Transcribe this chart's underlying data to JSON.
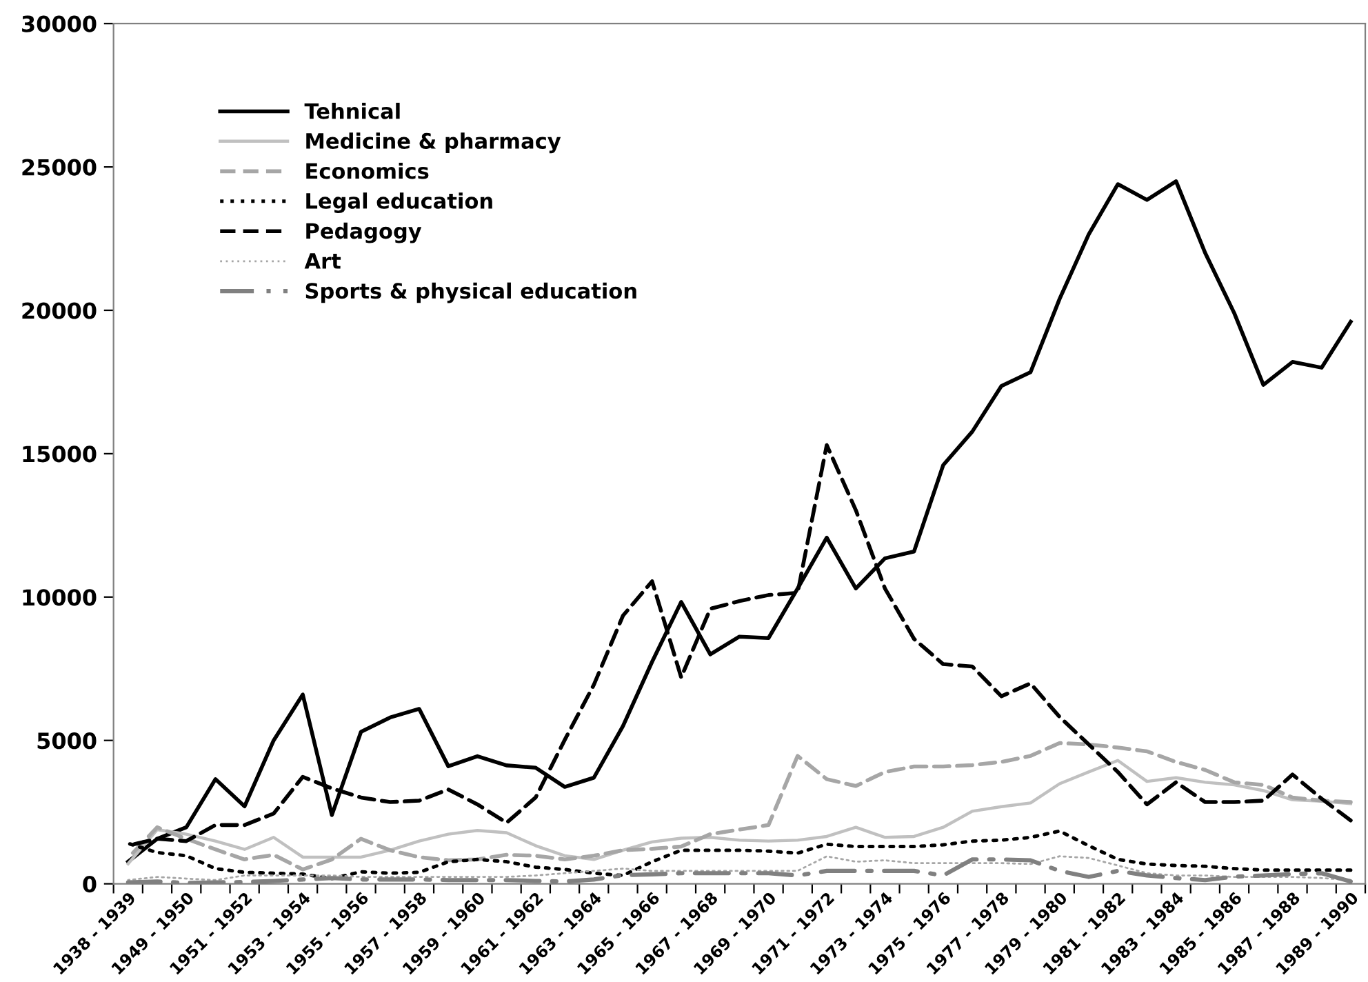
{
  "chart_data": {
    "type": "line",
    "categories": [
      "1938 - 1939",
      null,
      "1949 - 1950",
      null,
      "1951 - 1952",
      null,
      "1953 - 1954",
      null,
      "1955 - 1956",
      null,
      "1957 - 1958",
      null,
      "1959 - 1960",
      null,
      "1961 - 1962",
      null,
      "1963 - 1964",
      null,
      "1965 - 1966",
      null,
      "1967 - 1968",
      null,
      "1969 - 1970",
      null,
      "1971 - 1972",
      null,
      "1973 - 1974",
      null,
      "1975 - 1976",
      null,
      "1977 - 1978",
      null,
      "1979 - 1980",
      null,
      "1981 - 1982",
      null,
      "1983 - 1984",
      null,
      "1985 - 1986",
      null,
      "1987 - 1988",
      null,
      "1989 - 1990"
    ],
    "series": [
      {
        "name": "Tehnical",
        "color": "#000000",
        "line_style": "solid",
        "values": [
          770,
          1570,
          1970,
          3650,
          2700,
          5000,
          6600,
          2400,
          5300,
          5800,
          6100,
          4100,
          4450,
          4130,
          4050,
          3380,
          3700,
          5500,
          7740,
          9830,
          8000,
          8620,
          8570,
          10300,
          12070,
          10300,
          11350,
          11590,
          14600,
          15770,
          17360,
          17840,
          20400,
          22650,
          24400,
          23850,
          24500,
          22000,
          19900,
          17400,
          18200,
          18000,
          19600
        ]
      },
      {
        "name": "Medicine & pharmacy",
        "color": "#c0c0c0",
        "line_style": "solid",
        "values": [
          700,
          1890,
          1730,
          1490,
          1200,
          1620,
          930,
          930,
          930,
          1170,
          1490,
          1730,
          1860,
          1780,
          1330,
          980,
          850,
          1170,
          1460,
          1590,
          1620,
          1520,
          1490,
          1520,
          1650,
          1970,
          1620,
          1650,
          1970,
          2530,
          2690,
          2820,
          3490,
          3900,
          4300,
          3570,
          3700,
          3540,
          3450,
          3250,
          2930,
          2880,
          2800
        ]
      },
      {
        "name": "Economics",
        "color": "#a6a6a6",
        "line_style": "dashed",
        "values": [
          900,
          1970,
          1570,
          1200,
          850,
          1010,
          500,
          850,
          1570,
          1170,
          930,
          820,
          850,
          1010,
          980,
          850,
          980,
          1170,
          1220,
          1300,
          1730,
          1890,
          2050,
          4460,
          3650,
          3410,
          3900,
          4090,
          4090,
          4140,
          4250,
          4460,
          4910,
          4860,
          4750,
          4620,
          4250,
          3970,
          3540,
          3450,
          3010,
          2900,
          2850
        ]
      },
      {
        "name": "Legal education",
        "color": "#000000",
        "line_style": "dotted",
        "values": [
          1410,
          1090,
          980,
          530,
          400,
          370,
          340,
          180,
          420,
          370,
          400,
          770,
          850,
          770,
          580,
          500,
          370,
          290,
          770,
          1170,
          1170,
          1170,
          1140,
          1070,
          1380,
          1300,
          1300,
          1300,
          1360,
          1490,
          1520,
          1620,
          1840,
          1330,
          850,
          690,
          640,
          610,
          530,
          480,
          480,
          480,
          480
        ]
      },
      {
        "name": "Pedagogy",
        "color": "#000000",
        "line_style": "dashed",
        "values": [
          1330,
          1570,
          1490,
          2050,
          2050,
          2450,
          3730,
          3330,
          3010,
          2850,
          2900,
          3290,
          2770,
          2130,
          3010,
          5020,
          6940,
          9350,
          10550,
          7200,
          9590,
          9860,
          10070,
          10150,
          15300,
          13030,
          10300,
          8540,
          7660,
          7580,
          6540,
          6990,
          5820,
          4860,
          3900,
          2770,
          3540,
          2850,
          2850,
          2900,
          3810,
          2970,
          2210
        ]
      },
      {
        "name": "Art",
        "color": "#a6a6a6",
        "line_style": "dotted",
        "values": [
          130,
          240,
          180,
          130,
          290,
          290,
          290,
          290,
          240,
          240,
          240,
          240,
          240,
          240,
          290,
          370,
          450,
          530,
          450,
          450,
          450,
          450,
          450,
          450,
          960,
          770,
          820,
          720,
          720,
          720,
          720,
          690,
          960,
          900,
          640,
          370,
          290,
          290,
          240,
          240,
          240,
          200,
          130
        ]
      },
      {
        "name": "Sports & physical education",
        "color": "#808080",
        "line_style": "dashdot",
        "values": [
          50,
          80,
          30,
          50,
          60,
          100,
          150,
          200,
          150,
          150,
          150,
          130,
          130,
          130,
          100,
          80,
          150,
          300,
          330,
          370,
          370,
          370,
          370,
          290,
          450,
          450,
          450,
          450,
          290,
          850,
          850,
          820,
          450,
          240,
          450,
          290,
          200,
          130,
          250,
          290,
          340,
          370,
          80
        ]
      }
    ],
    "ylim": [
      0,
      30000
    ],
    "yticks": [
      0,
      5000,
      10000,
      15000,
      20000,
      25000,
      30000
    ],
    "grid": false,
    "legend": "top left",
    "marker": "none"
  }
}
